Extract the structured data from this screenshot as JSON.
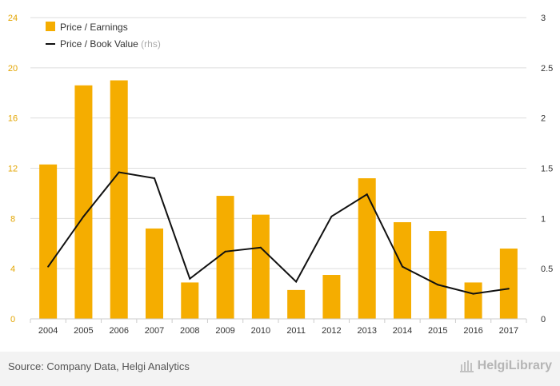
{
  "chart_data": {
    "type": "bar",
    "categories": [
      "2004",
      "2005",
      "2006",
      "2007",
      "2008",
      "2009",
      "2010",
      "2011",
      "2012",
      "2013",
      "2014",
      "2015",
      "2016",
      "2017"
    ],
    "series": [
      {
        "name": "Price / Earnings",
        "type": "bar",
        "axis": "left",
        "values": [
          12.3,
          18.6,
          19.0,
          7.2,
          2.9,
          9.8,
          8.3,
          2.3,
          3.5,
          11.2,
          7.7,
          7.0,
          2.9,
          5.6
        ]
      },
      {
        "name": "Price / Book Value",
        "name_suffix": "(rhs)",
        "type": "line",
        "axis": "right",
        "values": [
          0.52,
          1.02,
          1.46,
          1.4,
          0.4,
          0.67,
          0.71,
          0.37,
          1.02,
          1.24,
          0.52,
          0.34,
          0.25,
          0.3
        ]
      }
    ],
    "ylim_left": [
      0,
      24
    ],
    "yticks_left": [
      "0",
      "4",
      "8",
      "12",
      "16",
      "20",
      "24"
    ],
    "ylim_right": [
      0,
      3
    ],
    "yticks_right": [
      "0",
      "0.5",
      "1",
      "1.5",
      "2",
      "2.5",
      "3"
    ],
    "legend_position": "top-left",
    "grid": true
  },
  "colors": {
    "bar": "#f5ad00",
    "line": "#111111",
    "left_axis_text": "#e3a500",
    "right_axis_text": "#333333",
    "grid": "#dddddd"
  },
  "footer": {
    "source": "Source: Company Data, Helgi Analytics",
    "brand": "HelgiLibrary",
    "brand_icon": "building-icon"
  }
}
